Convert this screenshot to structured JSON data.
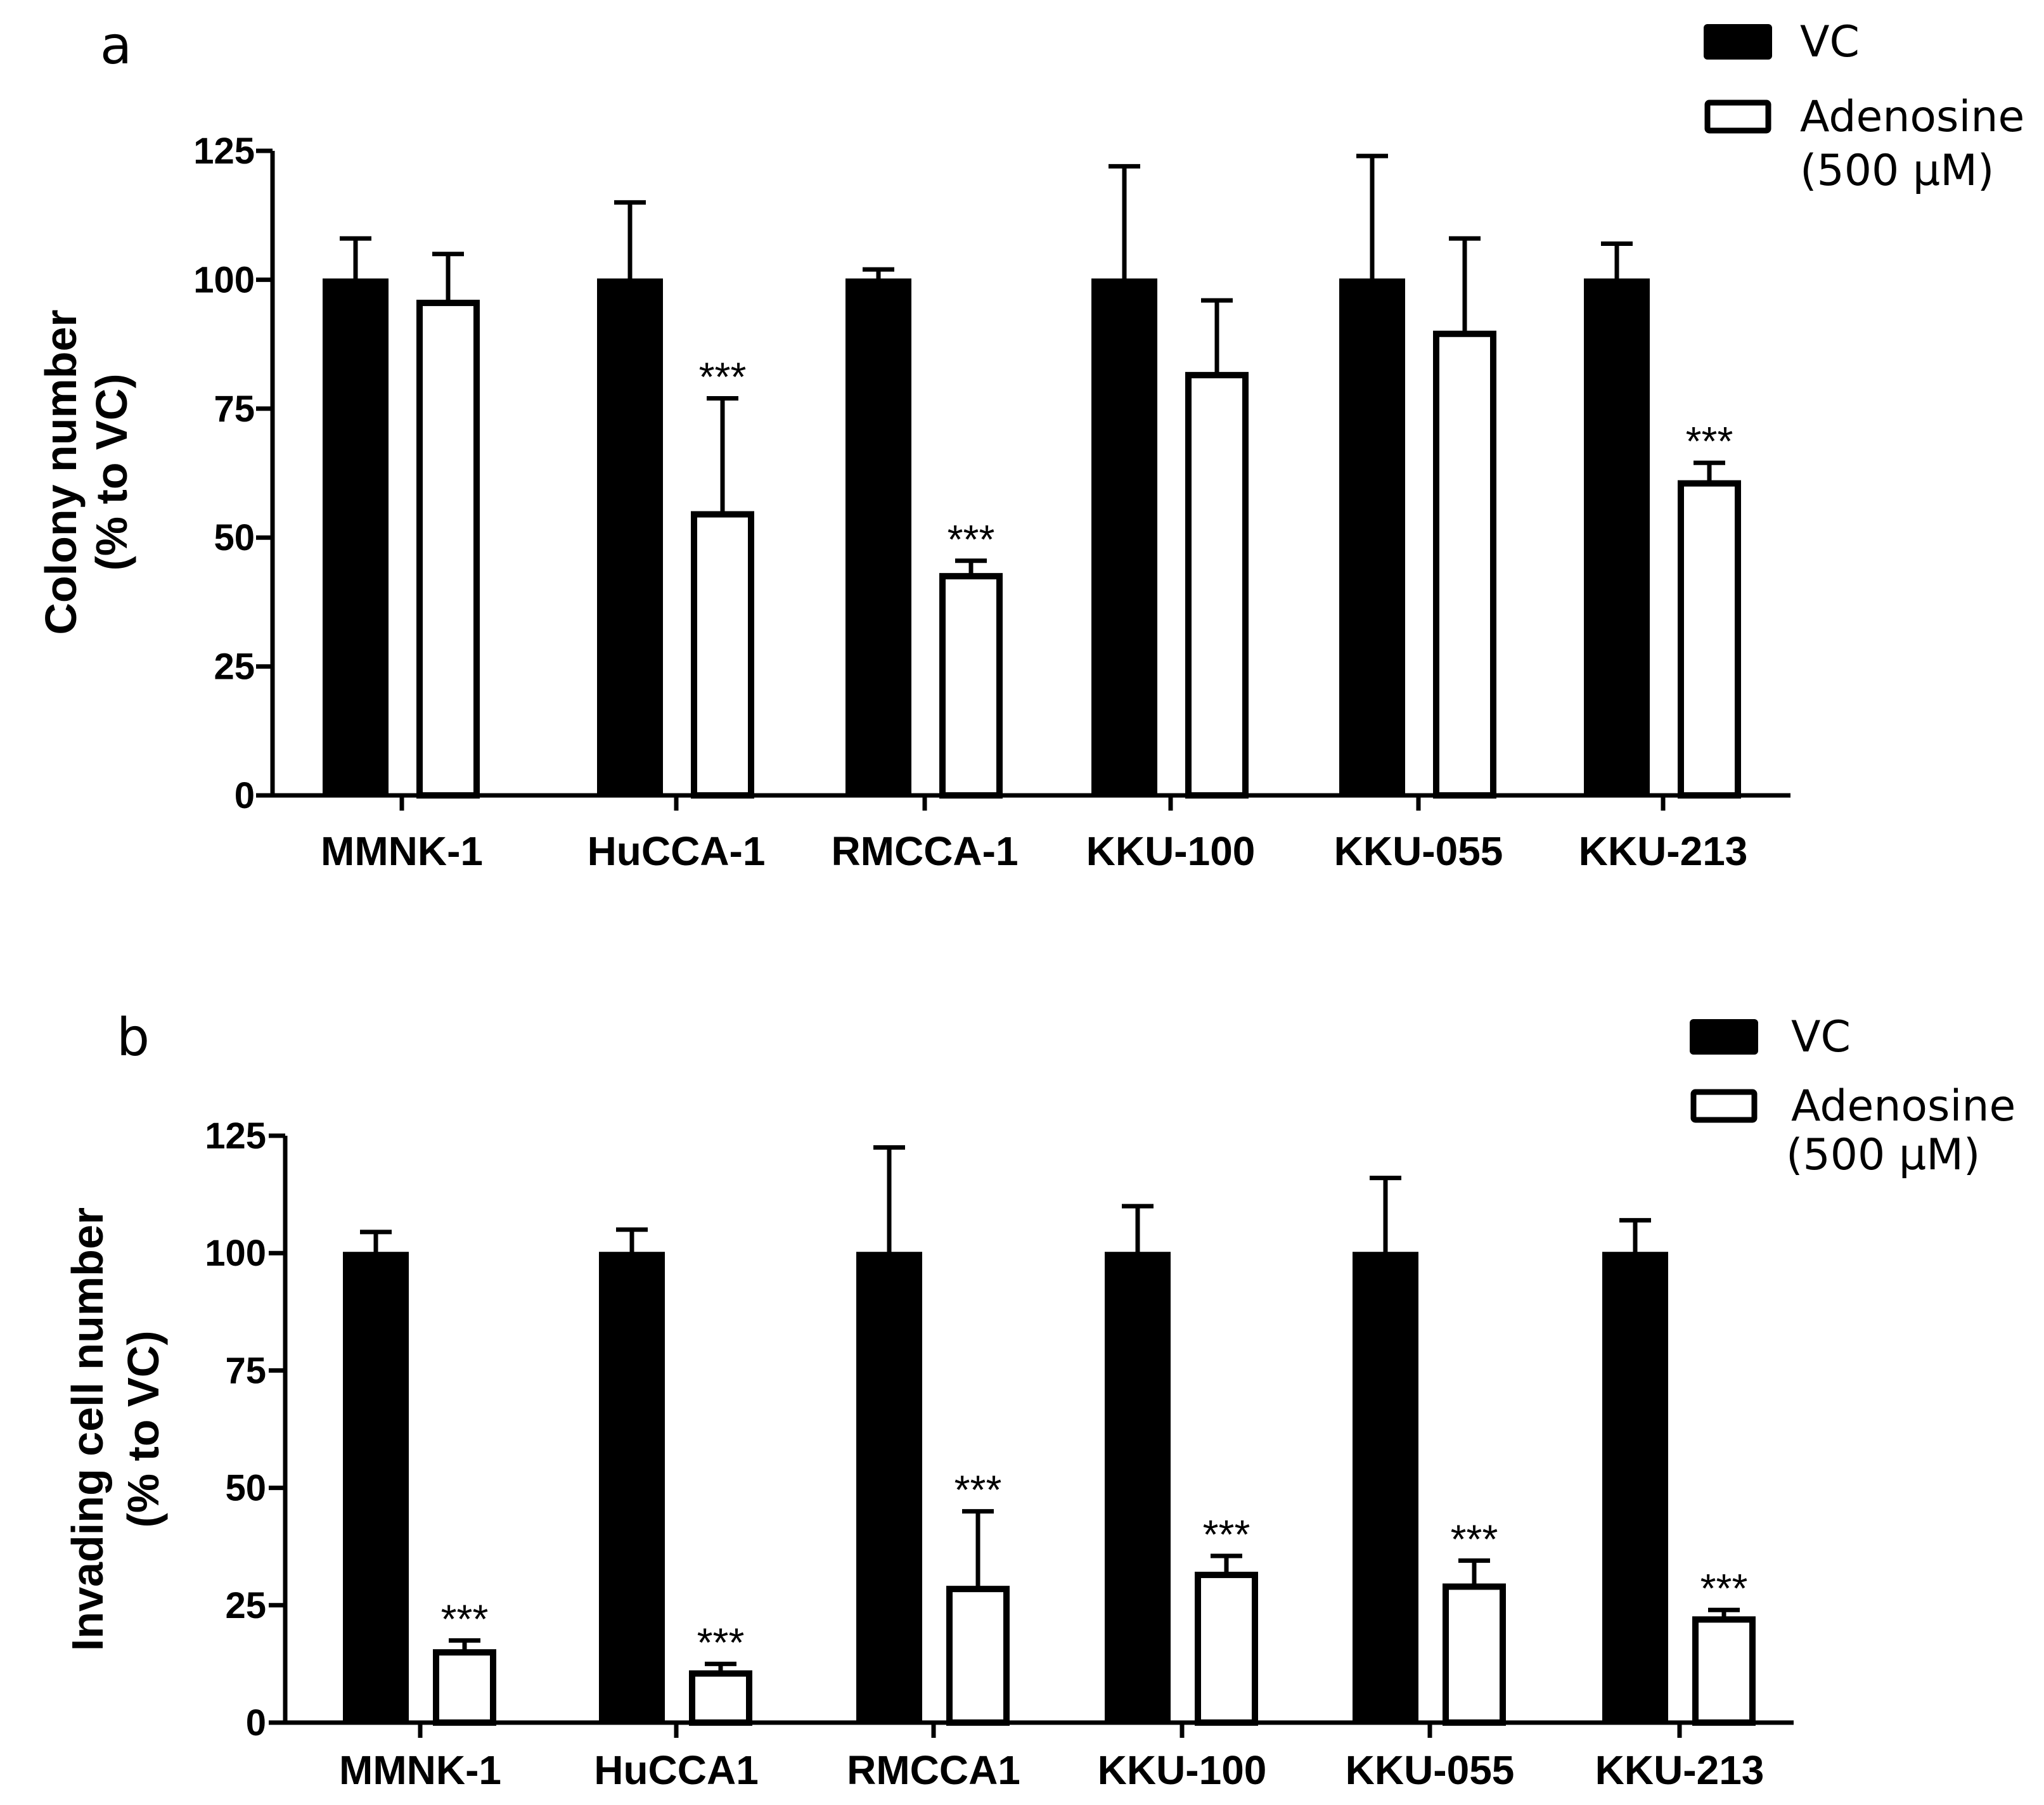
{
  "chart_data": [
    {
      "type": "bar",
      "panel_label": "a",
      "title": "",
      "xlabel": "",
      "ylabel_lines": [
        "Colony number",
        "(% to VC)"
      ],
      "ylim": [
        0,
        125
      ],
      "yticks": [
        0,
        25,
        50,
        75,
        100,
        125
      ],
      "grid": false,
      "legend_position": "top-right",
      "legend": [
        {
          "name": "VC",
          "lines": [
            "VC"
          ],
          "style": "filled"
        },
        {
          "name": "Adenosine (500 µM)",
          "lines": [
            "Adenosine",
            "(500 µM)"
          ],
          "style": "open"
        }
      ],
      "categories": [
        "MMNK-1",
        "HuCCA-1",
        "RMCCA-1",
        "KKU-100",
        "KKU-055",
        "KKU-213"
      ],
      "series": [
        {
          "name": "VC",
          "values": [
            100,
            100,
            100,
            100,
            100,
            100
          ],
          "errors": [
            8,
            15,
            2,
            22,
            24,
            7
          ],
          "significance": [
            "",
            "",
            "",
            "",
            "",
            ""
          ]
        },
        {
          "name": "Adenosine (500 µM)",
          "values": [
            96,
            55,
            43,
            82,
            90,
            61
          ],
          "errors": [
            9,
            22,
            2.5,
            14,
            18,
            3.5
          ],
          "significance": [
            "",
            "***",
            "***",
            "",
            "",
            "***"
          ]
        }
      ]
    },
    {
      "type": "bar",
      "panel_label": "b",
      "title": "",
      "xlabel": "",
      "ylabel_lines": [
        "Invading cell number",
        "(% to VC)"
      ],
      "ylim": [
        0,
        125
      ],
      "yticks": [
        0,
        25,
        50,
        75,
        100,
        125
      ],
      "grid": false,
      "legend_position": "top-right",
      "legend": [
        {
          "name": "VC",
          "lines": [
            "VC"
          ],
          "style": "filled"
        },
        {
          "name": "Adenosine (500 µM)",
          "lines": [
            "Adenosine",
            "(500 µM)"
          ],
          "style": "open"
        }
      ],
      "categories": [
        "MMNK-1",
        "HuCCA1",
        "RMCCA1",
        "KKU-100",
        "KKU-055",
        "KKU-213"
      ],
      "series": [
        {
          "name": "VC",
          "values": [
            100,
            100,
            100,
            100,
            100,
            100
          ],
          "errors": [
            4.5,
            5,
            22.5,
            10,
            16,
            7
          ],
          "significance": [
            "",
            "",
            "",
            "",
            "",
            ""
          ]
        },
        {
          "name": "Adenosine (500 µM)",
          "values": [
            15.5,
            11,
            29,
            32,
            29.5,
            22.5
          ],
          "errors": [
            2,
            1.5,
            16,
            3.5,
            5,
            1.5
          ],
          "significance": [
            "***",
            "***",
            "***",
            "***",
            "***",
            "***"
          ]
        }
      ]
    }
  ]
}
